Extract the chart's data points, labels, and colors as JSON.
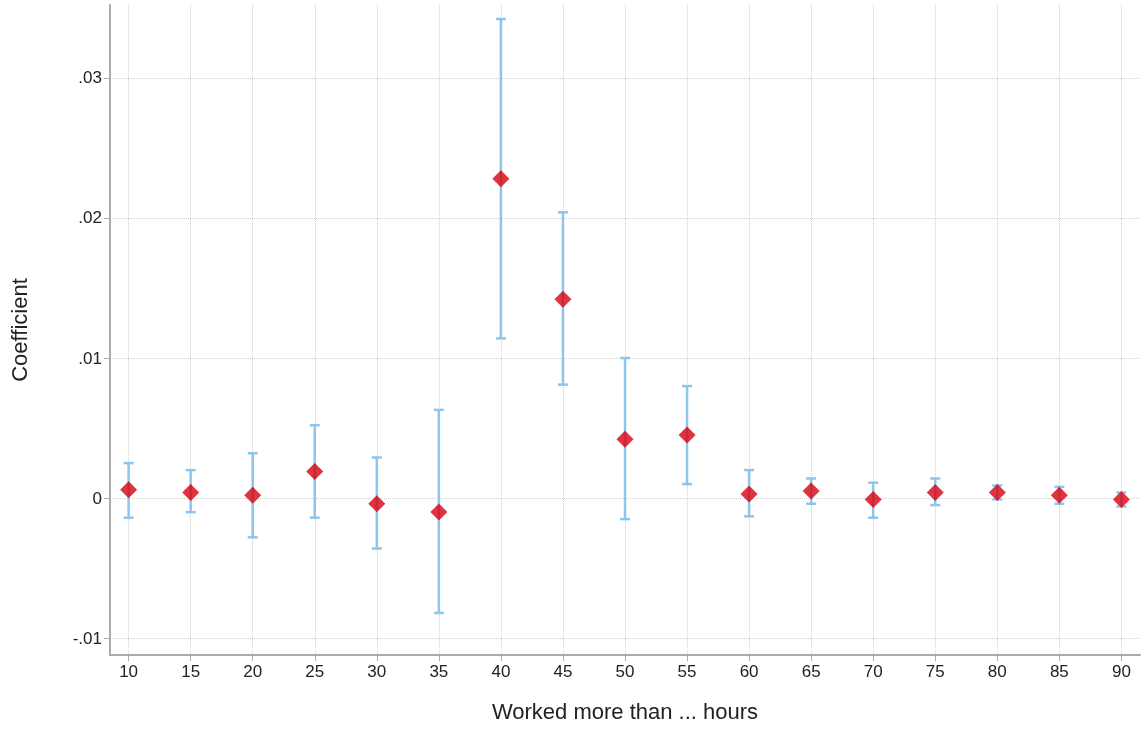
{
  "chart_data": {
    "type": "scatter",
    "xlabel": "Worked more than ... hours",
    "ylabel": "Coefficient",
    "x": [
      10,
      15,
      20,
      25,
      30,
      35,
      40,
      45,
      50,
      55,
      60,
      65,
      70,
      75,
      80,
      85,
      90
    ],
    "values": [
      0.0006,
      0.0004,
      0.0002,
      0.0019,
      -0.0004,
      -0.001,
      0.0228,
      0.0142,
      0.0042,
      0.0045,
      0.0003,
      0.0005,
      -0.0001,
      0.0004,
      0.0004,
      0.0002,
      -0.0001
    ],
    "errors": [
      [
        -0.0014,
        0.0025
      ],
      [
        -0.001,
        0.002
      ],
      [
        -0.0028,
        0.0032
      ],
      [
        -0.0014,
        0.0052
      ],
      [
        -0.0036,
        0.0029
      ],
      [
        -0.0082,
        0.0063
      ],
      [
        0.0114,
        0.0342
      ],
      [
        0.0081,
        0.0204
      ],
      [
        -0.0015,
        0.01
      ],
      [
        0.001,
        0.008
      ],
      [
        -0.0013,
        0.002
      ],
      [
        -0.0004,
        0.0014
      ],
      [
        -0.0014,
        0.0011
      ],
      [
        -0.0005,
        0.0014
      ],
      [
        -0.0001,
        0.0009
      ],
      [
        -0.0004,
        0.0008
      ],
      [
        -0.0006,
        0.0004
      ]
    ],
    "color": "#d7000f",
    "marker": "diamond",
    "grid": true,
    "xlim": [
      8.5,
      91.5
    ],
    "xticks": [
      10,
      15,
      20,
      25,
      30,
      35,
      40,
      45,
      50,
      55,
      60,
      65,
      70,
      75,
      80,
      85,
      90
    ],
    "ylim": [
      -0.0112,
      0.0352
    ],
    "yticks": [
      {
        "value": -0.01,
        "label": "-.01"
      },
      {
        "value": 0,
        "label": "0"
      },
      {
        "value": 0.01,
        "label": ".01"
      },
      {
        "value": 0.02,
        "label": ".02"
      },
      {
        "value": 0.03,
        "label": ".03"
      }
    ]
  }
}
